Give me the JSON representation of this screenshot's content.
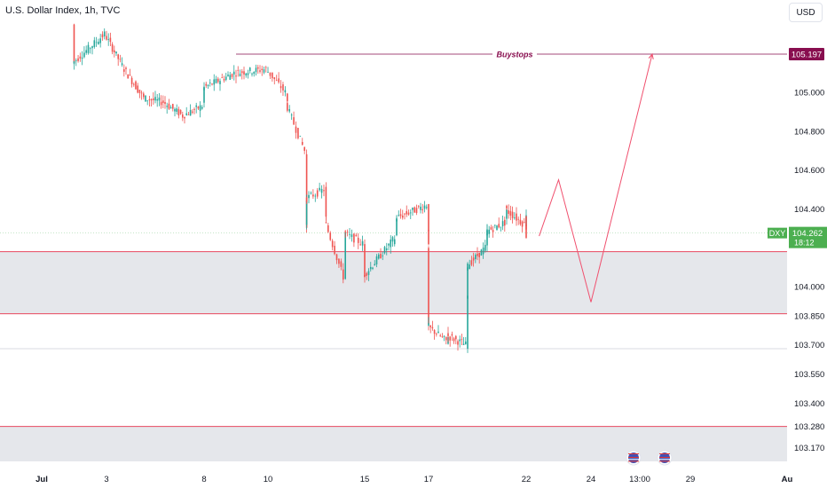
{
  "header": {
    "title": "U.S. Dollar Index, 1h, TVC",
    "currency": "USD"
  },
  "colors": {
    "up": "#26a69a",
    "down": "#ef5350",
    "level": "#e8485f",
    "zone": "#e1e3e8",
    "buystops": "#880e4f",
    "price_tag": "#4caf50",
    "path": "#f0506e"
  },
  "chart_data": {
    "type": "candlestick",
    "title": "U.S. Dollar Index, 1h, TVC",
    "y_axis": {
      "ticks": [
        "105.197",
        "105.000",
        "104.800",
        "104.600",
        "104.400",
        "104.262",
        "104.000",
        "103.850",
        "103.700",
        "103.550",
        "103.400",
        "103.280",
        "103.170"
      ],
      "range": [
        103.1,
        105.35
      ]
    },
    "x_axis": {
      "labels": [
        "Jul",
        "3",
        "8",
        "10",
        "15",
        "17",
        "22",
        "24",
        "13:00",
        "29",
        "Au"
      ]
    },
    "current_price": {
      "symbol": "DXY",
      "value": "104.262",
      "countdown": "18:12"
    },
    "buystops": {
      "label": "Buystops",
      "value": "105.197",
      "from": "Jul 9",
      "to": "Jul 27"
    },
    "horizontal_levels": [
      104.18,
      103.86,
      103.68,
      103.28
    ],
    "zones": [
      {
        "from": 103.86,
        "to": 104.18
      },
      {
        "from": 103.1,
        "to": 103.28
      }
    ],
    "projection": [
      {
        "x": "Jul 22 late",
        "y": 104.26
      },
      {
        "x": "Jul 23",
        "y": 104.55
      },
      {
        "x": "Jul 24",
        "y": 103.92
      },
      {
        "x": "Jul 27",
        "y": 105.197
      }
    ],
    "price_path": [
      {
        "x": "Jul 2",
        "y": 105.35
      },
      {
        "x": "Jul 2",
        "y": 105.15
      },
      {
        "x": "Jul 3",
        "y": 105.3
      },
      {
        "x": "Jul 4",
        "y": 105.12
      },
      {
        "x": "Jul 5",
        "y": 104.97
      },
      {
        "x": "Jul 6",
        "y": 104.95
      },
      {
        "x": "Jul 7",
        "y": 104.88
      },
      {
        "x": "Jul 8",
        "y": 104.93
      },
      {
        "x": "Jul 8",
        "y": 105.02
      },
      {
        "x": "Jul 9",
        "y": 105.1
      },
      {
        "x": "Jul 10",
        "y": 105.12
      },
      {
        "x": "Jul 11",
        "y": 105.0
      },
      {
        "x": "Jul 11",
        "y": 104.95
      },
      {
        "x": "Jul 12",
        "y": 104.7
      },
      {
        "x": "Jul 12",
        "y": 104.3
      },
      {
        "x": "Jul 12",
        "y": 104.45
      },
      {
        "x": "Jul 13",
        "y": 104.5
      },
      {
        "x": "Jul 13",
        "y": 104.35
      },
      {
        "x": "Jul 14",
        "y": 104.05
      },
      {
        "x": "Jul 14",
        "y": 104.28
      },
      {
        "x": "Jul 15",
        "y": 104.22
      },
      {
        "x": "Jul 15",
        "y": 104.05
      },
      {
        "x": "Jul 16",
        "y": 104.25
      },
      {
        "x": "Jul 16",
        "y": 104.35
      },
      {
        "x": "Jul 17",
        "y": 104.42
      },
      {
        "x": "Jul 17",
        "y": 104.3
      },
      {
        "x": "Jul 17",
        "y": 104.2
      },
      {
        "x": "Jul 17",
        "y": 103.8
      },
      {
        "x": "Jul 18",
        "y": 103.72
      },
      {
        "x": "Jul 18",
        "y": 103.75
      },
      {
        "x": "Jul 19",
        "y": 103.7
      },
      {
        "x": "Jul 19",
        "y": 103.95
      },
      {
        "x": "Jul 19",
        "y": 104.1
      },
      {
        "x": "Jul 20",
        "y": 104.2
      },
      {
        "x": "Jul 20",
        "y": 104.28
      },
      {
        "x": "Jul 21",
        "y": 104.33
      },
      {
        "x": "Jul 21",
        "y": 104.4
      },
      {
        "x": "Jul 22",
        "y": 104.32
      },
      {
        "x": "Jul 22",
        "y": 104.38
      },
      {
        "x": "Jul 22",
        "y": 104.3
      },
      {
        "x": "Jul 22",
        "y": 104.26
      }
    ]
  }
}
